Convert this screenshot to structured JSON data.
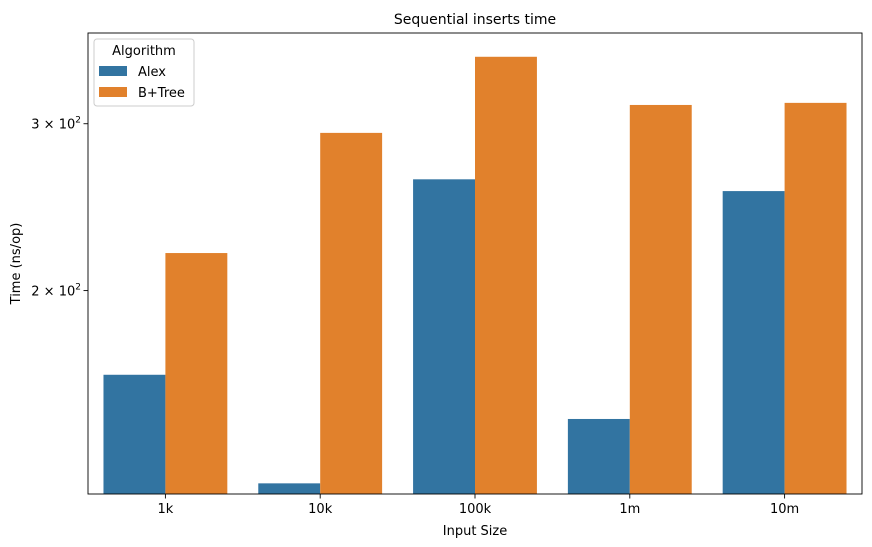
{
  "chart_data": {
    "type": "bar",
    "title": "Sequential inserts time",
    "xlabel": "Input Size",
    "ylabel": "Time (ns/op)",
    "yscale": "log",
    "ylim": [
      122,
      374
    ],
    "yticks": [
      {
        "value": 200,
        "base": "2 × 10",
        "exp": "2"
      },
      {
        "value": 300,
        "base": "3 × 10",
        "exp": "2"
      }
    ],
    "categories": [
      "1k",
      "10k",
      "100k",
      "1m",
      "10m"
    ],
    "legend": {
      "title": "Algorithm",
      "placement": "top-left"
    },
    "grid": false,
    "series": [
      {
        "name": "Alex",
        "color": "#3274a1",
        "values": [
          163.0,
          125.2,
          262.1,
          146.4,
          254.7
        ]
      },
      {
        "name": "B+Tree",
        "color": "#e1812c",
        "values": [
          219.1,
          293.4,
          353.0,
          314.0,
          315.6
        ]
      }
    ]
  }
}
